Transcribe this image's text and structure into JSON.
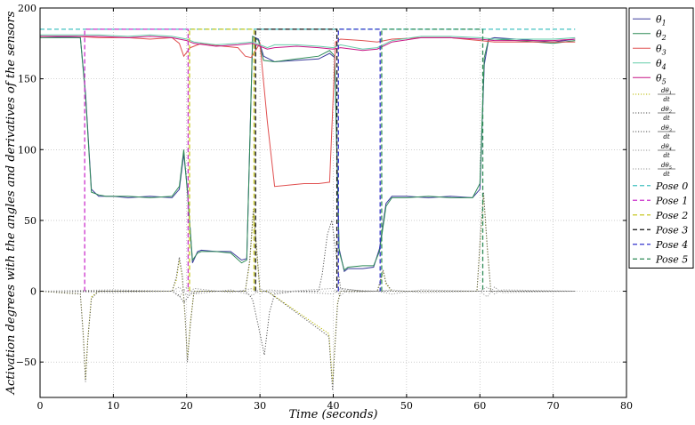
{
  "chart_data": {
    "type": "line",
    "title": "",
    "xlabel": "Time (seconds)",
    "ylabel": "Activation degrees with the angles and derivatives of the sensors",
    "xlim": [
      0,
      80
    ],
    "ylim": [
      -75,
      200
    ],
    "xticks": [
      0,
      10,
      20,
      30,
      40,
      50,
      60,
      70,
      80
    ],
    "yticks": [
      -50,
      0,
      50,
      100,
      150,
      200
    ],
    "xtick_labels": [
      "0",
      "10",
      "20",
      "30",
      "40",
      "50",
      "60",
      "70",
      "80"
    ],
    "ytick_labels": [
      "−50",
      "0",
      "50",
      "100",
      "150",
      "200"
    ],
    "grid": true,
    "legend_position": "right, outside plot",
    "series": [
      {
        "name": "θ1",
        "color": "#3b3b9b",
        "style": "solid",
        "x": [
          0,
          5.5,
          6.2,
          7,
          8,
          9,
          10,
          12,
          15,
          18,
          19,
          19.6,
          20.1,
          20.8,
          21.5,
          22,
          24,
          26,
          27.5,
          28.2,
          29,
          29.8,
          30.5,
          32,
          35,
          38,
          39.5,
          40.2,
          40.8,
          41.5,
          42,
          44,
          45.5,
          46.3,
          47.2,
          48,
          50,
          53,
          56,
          59,
          60,
          60.6,
          61.2,
          62,
          65,
          70,
          73
        ],
        "y": [
          180,
          179,
          140,
          72,
          67,
          67,
          67,
          66,
          67,
          66,
          72,
          97,
          72,
          20,
          28,
          29,
          28,
          28,
          22,
          23,
          180,
          178,
          166,
          162,
          163,
          164,
          168,
          165,
          30,
          14,
          16,
          16,
          17,
          30,
          62,
          67,
          67,
          66,
          67,
          66,
          72,
          160,
          178,
          179,
          178,
          176,
          178
        ]
      },
      {
        "name": "θ2",
        "color": "#2e8b57",
        "style": "solid",
        "x": [
          0,
          5.5,
          6.2,
          7,
          8,
          9,
          10,
          12,
          15,
          18,
          19,
          19.6,
          20.1,
          20.8,
          21.5,
          22,
          24,
          26,
          27.5,
          28.2,
          29,
          29.8,
          30.5,
          32,
          35,
          38,
          39.5,
          40.2,
          40.8,
          41.5,
          42,
          44,
          45.5,
          46.3,
          47.2,
          48,
          50,
          53,
          56,
          59,
          60,
          60.6,
          61.2,
          62,
          65,
          70,
          73
        ],
        "y": [
          179,
          179,
          138,
          70,
          68,
          67,
          67,
          67,
          66,
          67,
          74,
          100,
          70,
          22,
          27,
          28,
          28,
          27,
          20,
          22,
          180,
          177,
          163,
          162,
          164,
          166,
          170,
          166,
          28,
          15,
          17,
          18,
          18,
          28,
          60,
          66,
          66,
          67,
          66,
          66,
          76,
          165,
          178,
          178,
          177,
          175,
          177
        ]
      },
      {
        "name": "θ3",
        "color": "#e05050",
        "style": "solid",
        "x": [
          0,
          5,
          8,
          12,
          15,
          18,
          19,
          19.6,
          20.5,
          22,
          25,
          27,
          28,
          28.8,
          30,
          31,
          32,
          34,
          36,
          38,
          39.5,
          40.3,
          41,
          44,
          46,
          48,
          52,
          56,
          60,
          62,
          66,
          70,
          73
        ],
        "y": [
          180,
          180,
          179,
          179,
          178,
          179,
          175,
          166,
          172,
          175,
          173,
          172,
          166,
          165,
          175,
          120,
          74,
          75,
          76,
          76,
          77,
          176,
          178,
          177,
          176,
          178,
          179,
          179,
          177,
          176,
          176,
          176,
          176
        ]
      },
      {
        "name": "θ4",
        "color": "#66cdaa",
        "style": "solid",
        "x": [
          0,
          5,
          8,
          12,
          15,
          18,
          20,
          21,
          24,
          27,
          29,
          30,
          31,
          32,
          35,
          38,
          40,
          41,
          44,
          46,
          48,
          52,
          56,
          60,
          62,
          66,
          70,
          73
        ],
        "y": [
          181,
          181,
          181,
          180,
          181,
          180,
          178,
          176,
          174,
          175,
          176,
          174,
          172,
          174,
          174,
          173,
          172,
          174,
          171,
          172,
          177,
          180,
          180,
          179,
          178,
          178,
          178,
          179
        ]
      },
      {
        "name": "θ5",
        "color": "#c71585",
        "style": "solid",
        "x": [
          0,
          5,
          8,
          12,
          15,
          18,
          20,
          21,
          24,
          27,
          29,
          30,
          31,
          32,
          35,
          38,
          40,
          41,
          44,
          46,
          48,
          52,
          56,
          60,
          62,
          66,
          70,
          73
        ],
        "y": [
          180,
          180,
          180,
          179,
          180,
          179,
          177,
          175,
          173,
          174,
          175,
          173,
          171,
          172,
          173,
          172,
          171,
          172,
          170,
          171,
          176,
          179,
          179,
          178,
          177,
          177,
          177,
          178
        ]
      },
      {
        "name": "dθ1/dt",
        "color": "#b8b800",
        "style": "dotted",
        "x": [
          0,
          5.5,
          5.9,
          6.2,
          6.5,
          7,
          8,
          18,
          18.6,
          19,
          19.4,
          19.8,
          20.1,
          20.5,
          21,
          28,
          28.6,
          29.1,
          29.6,
          30,
          31,
          39.4,
          39.9,
          40.2,
          40.6,
          41,
          42,
          46,
          46.4,
          46.8,
          47.2,
          48,
          59.6,
          60.1,
          60.5,
          61,
          61.5,
          73
        ],
        "y": [
          0,
          -2,
          -30,
          -62,
          -35,
          -4,
          0,
          0,
          8,
          22,
          10,
          -20,
          -48,
          -22,
          0,
          0,
          20,
          55,
          25,
          0,
          0,
          -30,
          -65,
          -40,
          -8,
          0,
          0,
          0,
          6,
          14,
          5,
          0,
          0,
          40,
          68,
          30,
          0,
          0
        ]
      },
      {
        "name": "dθ2/dt",
        "color": "#555555",
        "style": "dotted",
        "x": [
          0,
          5.5,
          5.9,
          6.2,
          6.5,
          7,
          8,
          18,
          18.6,
          19,
          19.4,
          19.8,
          20.1,
          20.5,
          21,
          28,
          28.6,
          29.1,
          29.6,
          30,
          31,
          39.4,
          39.9,
          40.2,
          40.6,
          41,
          42,
          46,
          46.4,
          46.8,
          47.2,
          48,
          59.6,
          60.1,
          60.5,
          61,
          61.5,
          73
        ],
        "y": [
          0,
          -2,
          -32,
          -64,
          -36,
          -5,
          0,
          0,
          10,
          24,
          12,
          -18,
          -50,
          -24,
          0,
          0,
          22,
          58,
          28,
          0,
          0,
          -32,
          -70,
          -42,
          -9,
          0,
          0,
          0,
          7,
          15,
          6,
          0,
          0,
          42,
          70,
          32,
          0,
          0
        ]
      },
      {
        "name": "dθ3/dt",
        "color": "#555555",
        "style": "dotted",
        "x": [
          0,
          18,
          19,
          19.6,
          20.5,
          22,
          28,
          28.6,
          29,
          29.8,
          30.6,
          31.3,
          32,
          35,
          38,
          38.5,
          39.2,
          39.8,
          40.3,
          41,
          44,
          73
        ],
        "y": [
          0,
          0,
          -3,
          -8,
          -2,
          0,
          0,
          -3,
          -6,
          -25,
          -45,
          -15,
          -2,
          0,
          0,
          12,
          40,
          50,
          30,
          2,
          0,
          0
        ]
      },
      {
        "name": "dθ4/dt",
        "color": "#999999",
        "style": "dotted",
        "x": [
          0,
          10,
          18,
          19,
          20,
          21,
          26,
          29,
          30,
          31,
          40,
          41,
          42,
          46,
          48,
          52,
          60,
          61,
          62,
          63,
          73
        ],
        "y": [
          0,
          1,
          0,
          -4,
          3,
          -2,
          1,
          -3,
          2,
          -1,
          2,
          -3,
          1,
          0,
          -2,
          1,
          0,
          -4,
          3,
          -1,
          0
        ]
      },
      {
        "name": "dθ5/dt",
        "color": "#999999",
        "style": "dotted",
        "x": [
          0,
          10,
          18,
          19,
          20,
          21,
          26,
          29,
          30,
          31,
          40,
          41,
          42,
          46,
          48,
          52,
          60,
          61,
          62,
          63,
          73
        ],
        "y": [
          0,
          -1,
          0,
          3,
          -3,
          2,
          -1,
          2,
          -2,
          1,
          -2,
          2,
          -1,
          0,
          1,
          -1,
          0,
          3,
          -2,
          1,
          0
        ]
      },
      {
        "name": "Pose 0",
        "color": "#40c0c0",
        "style": "dashed",
        "x": [
          0,
          73
        ],
        "y": [
          185,
          185
        ]
      },
      {
        "name": "Pose 1",
        "color": "#cc33cc",
        "style": "dashed",
        "x": [
          6.1,
          6.1,
          20.2,
          20.2
        ],
        "y": [
          0,
          185,
          185,
          0
        ]
      },
      {
        "name": "Pose 2",
        "color": "#c8c820",
        "style": "dashed",
        "x": [
          20.4,
          20.4,
          29.2,
          29.2
        ],
        "y": [
          0,
          185,
          185,
          0
        ]
      },
      {
        "name": "Pose 3",
        "color": "#111111",
        "style": "dashed",
        "x": [
          29.4,
          29.4,
          40.5,
          40.5
        ],
        "y": [
          0,
          185,
          185,
          0
        ]
      },
      {
        "name": "Pose 4",
        "color": "#3333cc",
        "style": "dashed",
        "x": [
          40.7,
          40.7,
          46.4,
          46.4
        ],
        "y": [
          0,
          185,
          185,
          0
        ]
      },
      {
        "name": "Pose 5",
        "color": "#2e8b57",
        "style": "dashed",
        "x": [
          46.6,
          46.6,
          60.4,
          60.4
        ],
        "y": [
          0,
          185,
          185,
          0
        ]
      }
    ]
  },
  "legend": {
    "items": [
      {
        "sym": "θ",
        "sub": "1",
        "type": "plain"
      },
      {
        "sym": "θ",
        "sub": "2",
        "type": "plain"
      },
      {
        "sym": "θ",
        "sub": "3",
        "type": "plain"
      },
      {
        "sym": "θ",
        "sub": "4",
        "type": "plain"
      },
      {
        "sym": "θ",
        "sub": "5",
        "type": "plain"
      },
      {
        "num": "dθ",
        "sub": "1",
        "den": "dt",
        "type": "frac"
      },
      {
        "num": "dθ",
        "sub": "2",
        "den": "dt",
        "type": "frac"
      },
      {
        "num": "dθ",
        "sub": "3",
        "den": "dt",
        "type": "frac"
      },
      {
        "num": "dθ",
        "sub": "4",
        "den": "dt",
        "type": "frac"
      },
      {
        "num": "dθ",
        "sub": "5",
        "den": "dt",
        "type": "frac"
      },
      {
        "text": "Pose 0",
        "type": "text"
      },
      {
        "text": "Pose 1",
        "type": "text"
      },
      {
        "text": "Pose 2",
        "type": "text"
      },
      {
        "text": "Pose 3",
        "type": "text"
      },
      {
        "text": "Pose 4",
        "type": "text"
      },
      {
        "text": "Pose 5",
        "type": "text"
      }
    ]
  }
}
